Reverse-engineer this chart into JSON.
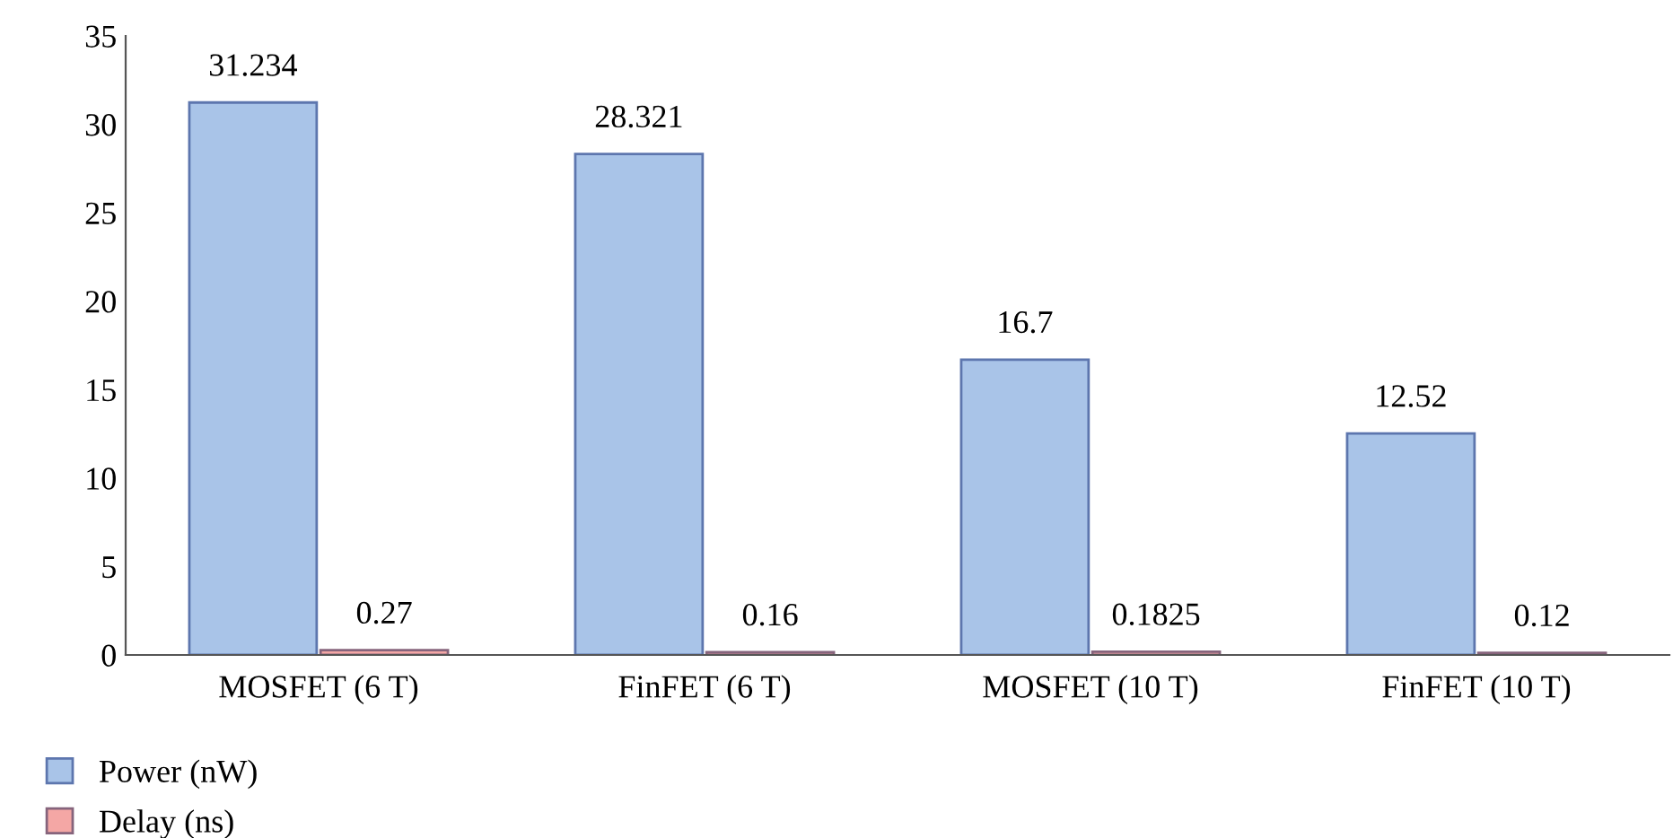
{
  "chart_data": {
    "type": "bar",
    "categories": [
      "MOSFET (6 T)",
      "FinFET (6 T)",
      "MOSFET (10 T)",
      "FinFET (10 T)"
    ],
    "series": [
      {
        "name": "Power (nW)",
        "color": "#a9c4e8",
        "values": [
          31.234,
          28.321,
          16.7,
          12.52
        ]
      },
      {
        "name": "Delay (ns)",
        "color": "#f4a7a5",
        "values": [
          0.27,
          0.16,
          0.1825,
          0.12
        ]
      }
    ],
    "ylim": [
      0,
      35
    ],
    "yticks": [
      0,
      5,
      10,
      15,
      20,
      25,
      30,
      35
    ],
    "data_labels": true,
    "grid": false,
    "legend": "bottom left"
  }
}
